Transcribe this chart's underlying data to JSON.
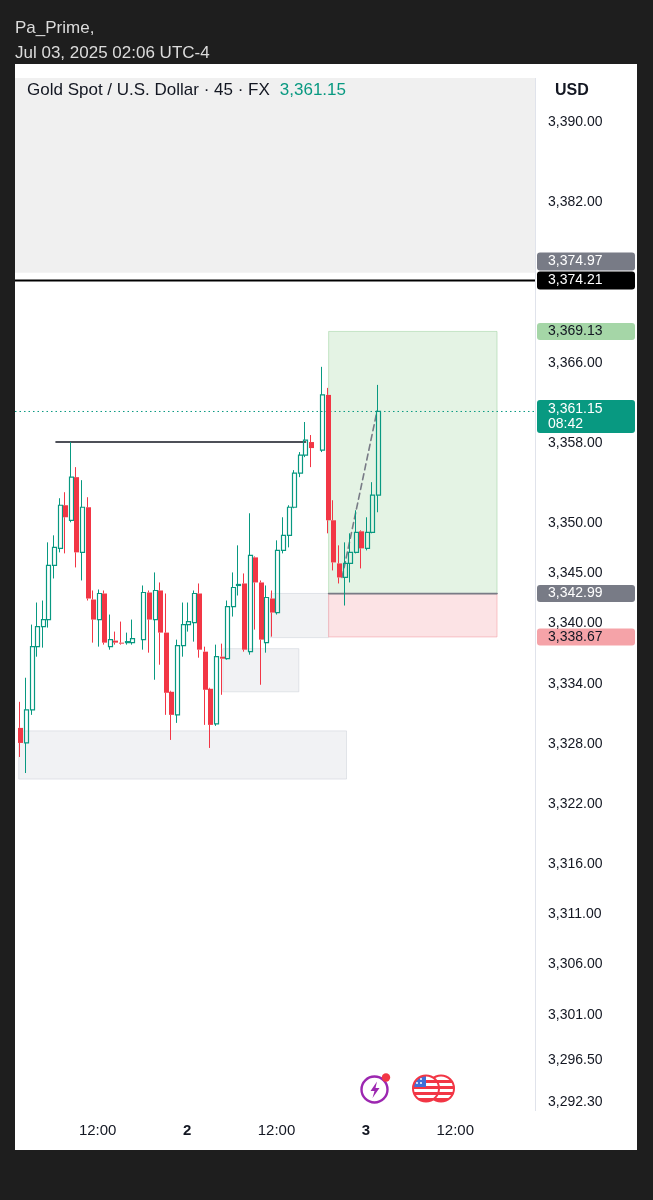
{
  "chart_data": {
    "type": "candlestick",
    "title": "Gold Spot / U.S. Dollar · 45 · FX",
    "subtitle": "3,361.15",
    "ylabel": "USD",
    "annotations": [
      "Pa_Prime,",
      "Jul 03, 2025 02:06 UTC-4"
    ],
    "xlim": [
      "2025-07-01T00:54",
      "2025-07-03T22:42"
    ],
    "ylim": [
      3291.5,
      3394.4
    ],
    "xticks": [
      {
        "value": "2025-07-01T12:00",
        "label": "12:00"
      },
      {
        "value": "2025-07-02",
        "label": "2"
      },
      {
        "value": "2025-07-02T12:00",
        "label": "12:00"
      },
      {
        "value": "2025-07-03",
        "label": "3"
      },
      {
        "value": "2025-07-03T12:00",
        "label": "12:00"
      }
    ],
    "yticks": [
      {
        "value": 3390,
        "label": "3,390.00"
      },
      {
        "value": 3382,
        "label": "3,382.00"
      },
      {
        "value": 3369.13,
        "label": "3,369.13"
      },
      {
        "value": 3366,
        "label": "3,366.00"
      },
      {
        "value": 3358,
        "label": "3,358.00"
      },
      {
        "value": 3350,
        "label": "3,350.00"
      },
      {
        "value": 3345,
        "label": "3,345.00"
      },
      {
        "value": 3342.99,
        "label": "3,342.99"
      },
      {
        "value": 3340,
        "label": "3,340.00"
      },
      {
        "value": 3338.67,
        "label": "3,338.67"
      },
      {
        "value": 3334,
        "label": "3,334.00"
      },
      {
        "value": 3328,
        "label": "3,328.00"
      },
      {
        "value": 3322,
        "label": "3,322.00"
      },
      {
        "value": 3316,
        "label": "3,316.00"
      },
      {
        "value": 3311,
        "label": "3,311.00"
      },
      {
        "value": 3306,
        "label": "3,306.00"
      },
      {
        "value": 3301,
        "label": "3,301.00"
      },
      {
        "value": 3296.5,
        "label": "3,296.50"
      },
      {
        "value": 3292.3,
        "label": "3,292.30"
      }
    ],
    "bands": [
      {
        "axis": "y",
        "from": 3374.97,
        "to": 3394.4,
        "label": "3,374.97",
        "color": "#f0f0f0"
      }
    ],
    "ref_lines": [
      {
        "axis": "y",
        "value": 3374.21,
        "label": "3,374.21",
        "color": "#000000"
      },
      {
        "axis": "y",
        "value": 3361.15,
        "label": "3,361.15\n08:42",
        "color": "#089981",
        "line_style": "dotted"
      }
    ],
    "series": [
      {
        "x": [
          "2025-07-01T01:30",
          "2025-07-01T02:15",
          "2025-07-01T03:00",
          "2025-07-01T03:45",
          "2025-07-01T04:30",
          "2025-07-01T05:15",
          "2025-07-01T06:00",
          "2025-07-01T06:45",
          "2025-07-01T07:30",
          "2025-07-01T08:15",
          "2025-07-01T09:00",
          "2025-07-01T09:45",
          "2025-07-01T10:30",
          "2025-07-01T11:15",
          "2025-07-01T12:00",
          "2025-07-01T12:45",
          "2025-07-01T13:30",
          "2025-07-01T14:15",
          "2025-07-01T15:00",
          "2025-07-01T15:45",
          "2025-07-01T16:30",
          "2025-07-01T18:00",
          "2025-07-01T18:45",
          "2025-07-01T19:30",
          "2025-07-01T20:15",
          "2025-07-01T21:00",
          "2025-07-01T21:45",
          "2025-07-01T22:30",
          "2025-07-01T23:15",
          "2025-07-02T00:00",
          "2025-07-02T00:45",
          "2025-07-02T01:30",
          "2025-07-02T02:15",
          "2025-07-02T03:00",
          "2025-07-02T03:45",
          "2025-07-02T04:30",
          "2025-07-02T05:15",
          "2025-07-02T06:00",
          "2025-07-02T06:45",
          "2025-07-02T07:30",
          "2025-07-02T08:15",
          "2025-07-02T09:00",
          "2025-07-02T09:45",
          "2025-07-02T10:30",
          "2025-07-02T11:15",
          "2025-07-02T12:00",
          "2025-07-02T12:45",
          "2025-07-02T13:30",
          "2025-07-02T14:15",
          "2025-07-02T15:00",
          "2025-07-02T15:45",
          "2025-07-02T16:30",
          "2025-07-02T18:00",
          "2025-07-02T18:45",
          "2025-07-02T19:30",
          "2025-07-02T20:15",
          "2025-07-02T21:00",
          "2025-07-02T21:45",
          "2025-07-02T22:30",
          "2025-07-02T23:15",
          "2025-07-03T00:00",
          "2025-07-03T00:45",
          "2025-07-03T01:30"
        ],
        "ohlc": [
          [
            3329.6,
            3332.2,
            3326.7,
            3328.1
          ],
          [
            3328.1,
            3334.6,
            3325.1,
            3331.4
          ],
          [
            3331.4,
            3339.9,
            3330.9,
            3337.7
          ],
          [
            3337.7,
            3342.1,
            3336.7,
            3339.7
          ],
          [
            3339.7,
            3342.3,
            3337.6,
            3340.4
          ],
          [
            3340.4,
            3348.1,
            3339.6,
            3345.8
          ],
          [
            3345.8,
            3348.8,
            3344.5,
            3347.6
          ],
          [
            3347.5,
            3352.5,
            3347.1,
            3351.8
          ],
          [
            3351.8,
            3353.1,
            3347.0,
            3350.6
          ],
          [
            3350.3,
            3358.1,
            3350.1,
            3354.6
          ],
          [
            3354.6,
            3355.6,
            3345.6,
            3347.1
          ],
          [
            3347.1,
            3354.3,
            3344.3,
            3351.6
          ],
          [
            3351.6,
            3352.6,
            3342.3,
            3342.5
          ],
          [
            3342.4,
            3343.3,
            3338.1,
            3340.4
          ],
          [
            3340.4,
            3343.4,
            3337.7,
            3343.0
          ],
          [
            3343.0,
            3343.3,
            3337.9,
            3338.1
          ],
          [
            3337.7,
            3340.9,
            3337.4,
            3338.4
          ],
          [
            3338.3,
            3339.2,
            3337.9,
            3338.1
          ],
          [
            3338.1,
            3340.2,
            3337.9,
            3338.0
          ],
          [
            3338.1,
            3339.1,
            3337.9,
            3338.2
          ],
          [
            3338.1,
            3340.4,
            3337.9,
            3338.5
          ],
          [
            3338.4,
            3343.8,
            3337.4,
            3343.1
          ],
          [
            3343.1,
            3343.3,
            3337.1,
            3340.4
          ],
          [
            3340.4,
            3345.1,
            3334.4,
            3343.3
          ],
          [
            3343.3,
            3344.1,
            3335.9,
            3339.1
          ],
          [
            3339.1,
            3343.0,
            3330.9,
            3333.1
          ],
          [
            3333.2,
            3333.3,
            3328.4,
            3330.9
          ],
          [
            3330.9,
            3338.4,
            3330.1,
            3337.8
          ],
          [
            3337.8,
            3342.1,
            3336.7,
            3339.9
          ],
          [
            3339.9,
            3342.1,
            3339.2,
            3340.2
          ],
          [
            3340.1,
            3343.3,
            3338.2,
            3343.0
          ],
          [
            3343.0,
            3344.0,
            3336.6,
            3337.4
          ],
          [
            3337.2,
            3337.7,
            3329.9,
            3333.4
          ],
          [
            3333.5,
            3333.6,
            3327.6,
            3329.9
          ],
          [
            3330.0,
            3337.9,
            3329.8,
            3336.7
          ],
          [
            3336.7,
            3338.0,
            3332.9,
            3336.5
          ],
          [
            3336.5,
            3342.3,
            3336.4,
            3341.7
          ],
          [
            3341.7,
            3345.1,
            3340.7,
            3343.6
          ],
          [
            3343.8,
            3347.8,
            3342.8,
            3343.9
          ],
          [
            3344.0,
            3345.0,
            3337.2,
            3337.4
          ],
          [
            3337.2,
            3351.0,
            3336.9,
            3346.8
          ],
          [
            3346.6,
            3346.7,
            3339.4,
            3344.1
          ],
          [
            3344.1,
            3344.3,
            3333.9,
            3338.4
          ],
          [
            3338.1,
            3343.8,
            3337.1,
            3342.6
          ],
          [
            3342.5,
            3343.3,
            3338.7,
            3341.1
          ],
          [
            3341.1,
            3348.3,
            3340.9,
            3347.3
          ],
          [
            3347.3,
            3350.6,
            3347.0,
            3348.8
          ],
          [
            3348.8,
            3351.8,
            3347.6,
            3351.6
          ],
          [
            3351.6,
            3355.3,
            3351.5,
            3355.0
          ],
          [
            3355.0,
            3357.1,
            3354.6,
            3356.8
          ],
          [
            3356.8,
            3360.1,
            3356.6,
            3358.3
          ],
          [
            3358.1,
            3358.8,
            3355.6,
            3357.5
          ],
          [
            3357.3,
            3365.6,
            3357.1,
            3362.8
          ],
          [
            3362.8,
            3363.5,
            3349.0,
            3350.3
          ],
          [
            3350.3,
            3352.3,
            3345.3,
            3346.1
          ],
          [
            3346.0,
            3347.8,
            3344.0,
            3344.6
          ],
          [
            3344.6,
            3348.1,
            3341.8,
            3346.0
          ],
          [
            3346.0,
            3349.0,
            3344.1,
            3347.1
          ],
          [
            3347.1,
            3351.3,
            3347.0,
            3349.1
          ],
          [
            3349.2,
            3349.3,
            3345.5,
            3347.5
          ],
          [
            3347.5,
            3350.6,
            3347.3,
            3349.1
          ],
          [
            3349.1,
            3354.1,
            3349.0,
            3352.8
          ],
          [
            3352.8,
            3363.8,
            3351.1,
            3361.15
          ]
        ],
        "colors": [
          "#f23645",
          "#089981",
          "#089981",
          "#089981",
          "#089981",
          "#089981",
          "#089981",
          "#089981",
          "#f23645",
          "#089981",
          "#f23645",
          "#089981",
          "#f23645",
          "#f23645",
          "#089981",
          "#f23645",
          "#089981",
          "#f23645",
          "#f23645",
          "#089981",
          "#089981",
          "#089981",
          "#f23645",
          "#089981",
          "#f23645",
          "#f23645",
          "#f23645",
          "#089981",
          "#089981",
          "#089981",
          "#089981",
          "#f23645",
          "#f23645",
          "#f23645",
          "#089981",
          "#f23645",
          "#089981",
          "#089981",
          "#089981",
          "#f23645",
          "#089981",
          "#f23645",
          "#f23645",
          "#089981",
          "#f23645",
          "#089981",
          "#089981",
          "#089981",
          "#089981",
          "#089981",
          "#089981",
          "#f23645",
          "#089981",
          "#f23645",
          "#f23645",
          "#f23645",
          "#089981",
          "#089981",
          "#089981",
          "#f23645",
          "#089981",
          "#089981",
          "#089981"
        ]
      },
      {
        "type": "line",
        "x": [
          "2025-07-01T01:24",
          "2025-07-02T21:24"
        ],
        "values": [
          null,
          null
        ],
        "lower": [
          3324.5,
          3324.5
        ],
        "upper": [
          3329.3,
          3329.3
        ],
        "color": "#d1d4dc"
      },
      {
        "type": "line",
        "x": [
          "2025-07-02T04:48",
          "2025-07-02T15:00"
        ],
        "values": [
          null,
          null
        ],
        "lower": [
          3333.2,
          3333.2
        ],
        "upper": [
          3337.5,
          3337.5
        ],
        "color": "#d1d4dc"
      },
      {
        "type": "line",
        "x": [
          "2025-07-02T11:12",
          "2025-07-02T19:00"
        ],
        "values": [
          null,
          null
        ],
        "lower": [
          3338.6,
          3338.6
        ],
        "upper": [
          3343.0,
          3343.0
        ],
        "color": "#d1d4dc"
      },
      {
        "type": "line",
        "x": [
          "2025-07-02T19:00",
          "2025-07-03T17:36"
        ],
        "values": [
          null,
          null
        ],
        "lower": [
          3342.99,
          3342.99
        ],
        "upper": [
          3369.13,
          3369.13
        ],
        "color": "#a5d6a7"
      },
      {
        "type": "line",
        "x": [
          "2025-07-02T19:00",
          "2025-07-03T17:36"
        ],
        "values": [
          null,
          null
        ],
        "lower": [
          3338.67,
          3338.67
        ],
        "upper": [
          3342.99,
          3342.99
        ],
        "color": "#f5a3a8"
      },
      {
        "type": "line",
        "x": [
          "2025-07-02T19:00",
          "2025-07-03T17:36"
        ],
        "values": [
          3342.99,
          3342.99
        ],
        "color": "#787b86"
      },
      {
        "type": "line",
        "x": [
          "2025-07-01T06:24",
          "2025-07-02T15:54"
        ],
        "values": [
          3358.1,
          3358.1
        ],
        "color": "#131722"
      },
      {
        "type": "line",
        "x": [
          "2025-07-02T20:48",
          "2025-07-03T01:30"
        ],
        "values": [
          3344.6,
          3361.2
        ],
        "color": "#787b86",
        "line_style": "dashed"
      }
    ]
  }
}
